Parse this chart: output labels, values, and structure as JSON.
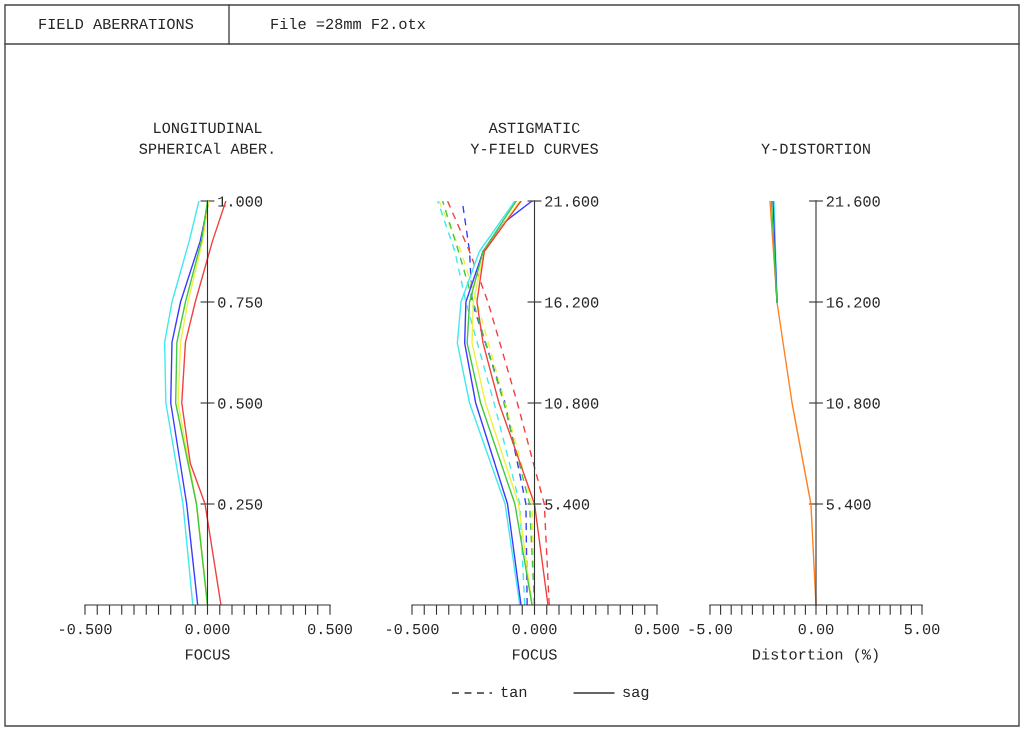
{
  "chart_data": [
    {
      "type": "line",
      "title": "LONGITUDINAL\nSPHERICAl ABER.",
      "xlabel": "FOCUS",
      "annotations": [
        "FIELD ABERRATIONS",
        "File =28mm F2.otx"
      ],
      "grid": false,
      "marker": "none",
      "line_style": "solid",
      "xlim": [
        -0.5,
        0.5
      ],
      "ylim": [
        0,
        1
      ],
      "xticks": [
        {
          "value": -0.5,
          "label": "-0.500"
        },
        {
          "value": -0.45,
          "label": null
        },
        {
          "value": -0.4,
          "label": null
        },
        {
          "value": -0.35,
          "label": null
        },
        {
          "value": -0.3,
          "label": null
        },
        {
          "value": -0.25,
          "label": null
        },
        {
          "value": -0.2,
          "label": null
        },
        {
          "value": -0.15,
          "label": null
        },
        {
          "value": -0.1,
          "label": null
        },
        {
          "value": -0.05,
          "label": null
        },
        {
          "value": 0,
          "label": "0.000"
        },
        {
          "value": 0.05,
          "label": null
        },
        {
          "value": 0.1,
          "label": null
        },
        {
          "value": 0.15,
          "label": null
        },
        {
          "value": 0.2,
          "label": null
        },
        {
          "value": 0.25,
          "label": null
        },
        {
          "value": 0.3,
          "label": null
        },
        {
          "value": 0.35,
          "label": null
        },
        {
          "value": 0.4,
          "label": null
        },
        {
          "value": 0.45,
          "label": null
        },
        {
          "value": 0.5,
          "label": "0.500"
        }
      ],
      "yticks": [
        {
          "value": 0.25,
          "label": "0.250"
        },
        {
          "value": 0.5,
          "label": "0.500"
        },
        {
          "value": 0.75,
          "label": "0.750"
        },
        {
          "value": 1,
          "label": "1.000"
        }
      ],
      "series": [
        {
          "color": "#40e8f0",
          "x": [
            -0.06,
            -0.1,
            -0.17,
            -0.175,
            -0.145,
            -0.075,
            -0.035
          ],
          "values": [
            0,
            0.25,
            0.5,
            0.65,
            0.75,
            0.9,
            1
          ]
        },
        {
          "color": "#3a3aff",
          "x": [
            -0.04,
            -0.085,
            -0.15,
            -0.145,
            -0.11,
            -0.03,
            0.005
          ],
          "values": [
            0,
            0.25,
            0.5,
            0.65,
            0.75,
            0.9,
            1
          ]
        },
        {
          "color": "#f0f040",
          "x": [
            0,
            -0.045,
            -0.12,
            -0.11,
            -0.08,
            -0.02,
            0.005
          ],
          "values": [
            0,
            0.25,
            0.5,
            0.65,
            0.75,
            0.9,
            1
          ]
        },
        {
          "color": "#40c840",
          "x": [
            0,
            -0.045,
            -0.13,
            -0.125,
            -0.09,
            -0.025,
            0
          ],
          "values": [
            0,
            0.25,
            0.5,
            0.65,
            0.75,
            0.9,
            1
          ]
        },
        {
          "color": "#f04040",
          "x": [
            0.055,
            -0.01,
            -0.07,
            -0.105,
            -0.09,
            -0.05,
            0.02,
            0.075
          ],
          "values": [
            0,
            0.25,
            0.35,
            0.5,
            0.65,
            0.75,
            0.9,
            1
          ]
        }
      ]
    },
    {
      "type": "line",
      "title": "ASTIGMATIC\nY-FIELD CURVES",
      "xlabel": "FOCUS",
      "grid": false,
      "marker": "none",
      "annotations": [
        "tan",
        "sag"
      ],
      "xlim": [
        -0.5,
        0.5
      ],
      "ylim": [
        0,
        21.6
      ],
      "xticks": [
        {
          "value": -0.5,
          "label": "-0.500"
        },
        {
          "value": -0.45,
          "label": null
        },
        {
          "value": -0.4,
          "label": null
        },
        {
          "value": -0.35,
          "label": null
        },
        {
          "value": -0.3,
          "label": null
        },
        {
          "value": -0.25,
          "label": null
        },
        {
          "value": -0.2,
          "label": null
        },
        {
          "value": -0.15,
          "label": null
        },
        {
          "value": -0.1,
          "label": null
        },
        {
          "value": -0.05,
          "label": null
        },
        {
          "value": 0,
          "label": "0.000"
        },
        {
          "value": 0.05,
          "label": null
        },
        {
          "value": 0.1,
          "label": null
        },
        {
          "value": 0.15,
          "label": null
        },
        {
          "value": 0.2,
          "label": null
        },
        {
          "value": 0.25,
          "label": null
        },
        {
          "value": 0.3,
          "label": null
        },
        {
          "value": 0.35,
          "label": null
        },
        {
          "value": 0.4,
          "label": null
        },
        {
          "value": 0.45,
          "label": null
        },
        {
          "value": 0.5,
          "label": "0.500"
        }
      ],
      "yticks": [
        {
          "value": 5.4,
          "label": "5.400"
        },
        {
          "value": 10.8,
          "label": "10.800"
        },
        {
          "value": 16.2,
          "label": "16.200"
        },
        {
          "value": 21.6,
          "label": "21.600"
        }
      ],
      "series": [
        {
          "line_style": "dashed",
          "color": "#40e8f0",
          "x": [
            -0.04,
            -0.06,
            -0.165,
            -0.28,
            -0.325,
            -0.395
          ],
          "values": [
            0,
            5.4,
            10.8,
            16.2,
            18.9,
            21.6
          ]
        },
        {
          "line_style": "dashed",
          "color": "#3a3aff",
          "x": [
            -0.03,
            -0.035,
            -0.12,
            -0.255,
            -0.265,
            -0.295
          ],
          "values": [
            0,
            5.4,
            10.8,
            16.2,
            18.9,
            21.6
          ]
        },
        {
          "line_style": "dashed",
          "color": "#f0f040",
          "x": [
            0,
            -0.01,
            -0.12,
            -0.235,
            -0.3,
            -0.39
          ],
          "values": [
            0,
            5.4,
            10.8,
            16.2,
            18.9,
            21.6
          ]
        },
        {
          "line_style": "dashed",
          "color": "#40c840",
          "x": [
            0,
            -0.02,
            -0.125,
            -0.25,
            -0.31,
            -0.375
          ],
          "values": [
            0,
            5.4,
            10.8,
            16.2,
            18.9,
            21.6
          ]
        },
        {
          "line_style": "dashed",
          "color": "#f04040",
          "x": [
            0.06,
            0.04,
            -0.07,
            -0.19,
            -0.265,
            -0.355
          ],
          "values": [
            0,
            5.4,
            10.8,
            16.2,
            18.9,
            21.6
          ]
        },
        {
          "line_style": "solid",
          "color": "#40e8f0",
          "x": [
            -0.06,
            -0.12,
            -0.265,
            -0.315,
            -0.3,
            -0.225,
            -0.08
          ],
          "values": [
            0,
            5.4,
            10.8,
            14,
            16.2,
            18.9,
            21.6
          ]
        },
        {
          "line_style": "solid",
          "color": "#3a3aff",
          "x": [
            -0.055,
            -0.11,
            -0.24,
            -0.285,
            -0.28,
            -0.21,
            -0.12,
            -0.01
          ],
          "values": [
            0,
            5.4,
            10.8,
            14,
            16.2,
            18.9,
            20.5,
            21.6
          ]
        },
        {
          "line_style": "solid",
          "color": "#f0f040",
          "x": [
            -0.01,
            -0.065,
            -0.2,
            -0.255,
            -0.25,
            -0.205,
            -0.06
          ],
          "values": [
            0,
            5.4,
            10.8,
            14,
            16.2,
            18.9,
            21.6
          ]
        },
        {
          "line_style": "solid",
          "color": "#40c840",
          "x": [
            -0.01,
            -0.08,
            -0.22,
            -0.275,
            -0.265,
            -0.21,
            -0.075
          ],
          "values": [
            0,
            5.4,
            10.8,
            14,
            16.2,
            18.9,
            21.6
          ]
        },
        {
          "line_style": "solid",
          "color": "#f04040",
          "x": [
            0.055,
            0,
            -0.145,
            -0.21,
            -0.235,
            -0.205,
            -0.055
          ],
          "values": [
            0,
            5.4,
            10.8,
            14,
            16.2,
            18.9,
            21.6
          ]
        }
      ]
    },
    {
      "type": "line",
      "title": "Y-DISTORTION",
      "xlabel": "Distortion (%)",
      "grid": false,
      "marker": "none",
      "line_style": "solid",
      "xlim": [
        -5,
        5
      ],
      "ylim": [
        0,
        21.6
      ],
      "xticks": [
        {
          "value": -5,
          "label": "-5.00"
        },
        {
          "value": -4.5,
          "label": null
        },
        {
          "value": -4,
          "label": null
        },
        {
          "value": -3.5,
          "label": null
        },
        {
          "value": -3,
          "label": null
        },
        {
          "value": -2.5,
          "label": null
        },
        {
          "value": -2,
          "label": null
        },
        {
          "value": -1.5,
          "label": null
        },
        {
          "value": -1,
          "label": null
        },
        {
          "value": -0.5,
          "label": null
        },
        {
          "value": 0,
          "label": "0.00"
        },
        {
          "value": 0.5,
          "label": null
        },
        {
          "value": 1,
          "label": null
        },
        {
          "value": 1.5,
          "label": null
        },
        {
          "value": 2,
          "label": null
        },
        {
          "value": 2.5,
          "label": null
        },
        {
          "value": 3,
          "label": null
        },
        {
          "value": 3.5,
          "label": null
        },
        {
          "value": 4,
          "label": null
        },
        {
          "value": 4.5,
          "label": null
        },
        {
          "value": 5,
          "label": "5.00"
        }
      ],
      "yticks": [
        {
          "value": 5.4,
          "label": "5.400"
        },
        {
          "value": 10.8,
          "label": "10.800"
        },
        {
          "value": 16.2,
          "label": "16.200"
        },
        {
          "value": 21.6,
          "label": "21.600"
        }
      ],
      "series": [
        {
          "color": "#ff8020",
          "x": [
            0,
            -0.24,
            -1.13,
            -1.84,
            -2.17
          ],
          "values": [
            0,
            5.4,
            10.8,
            16.2,
            21.6
          ]
        },
        {
          "color": "#40e8f0",
          "x": [
            -1.84,
            -1.98
          ],
          "values": [
            16.2,
            21.6
          ]
        },
        {
          "color": "#3a3aff",
          "x": [
            -1.84,
            -2.03
          ],
          "values": [
            16.2,
            21.6
          ]
        },
        {
          "color": "#40c840",
          "x": [
            -1.84,
            -2.1
          ],
          "values": [
            16.2,
            21.6
          ]
        }
      ]
    }
  ]
}
